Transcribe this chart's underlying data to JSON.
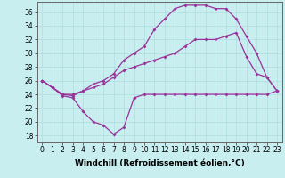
{
  "xlabel": "Windchill (Refroidissement éolien,°C)",
  "background_color": "#c8eef0",
  "grid_color": "#b0dde0",
  "line_color": "#993399",
  "x_ticks": [
    0,
    1,
    2,
    3,
    4,
    5,
    6,
    7,
    8,
    9,
    10,
    11,
    12,
    13,
    14,
    15,
    16,
    17,
    18,
    19,
    20,
    21,
    22,
    23
  ],
  "y_ticks": [
    18,
    20,
    22,
    24,
    26,
    28,
    30,
    32,
    34,
    36
  ],
  "xlim": [
    -0.5,
    23.5
  ],
  "ylim": [
    17.0,
    37.5
  ],
  "line1_x": [
    0,
    1,
    2,
    3,
    4,
    5,
    6,
    7,
    8,
    9,
    10,
    11,
    12,
    13,
    14,
    15,
    16,
    17,
    18,
    19,
    20,
    21,
    22,
    23
  ],
  "line1_y": [
    26.0,
    25.0,
    23.8,
    23.5,
    21.5,
    20.0,
    19.5,
    18.2,
    19.2,
    23.5,
    24.0,
    24.0,
    24.0,
    24.0,
    24.0,
    24.0,
    24.0,
    24.0,
    24.0,
    24.0,
    24.0,
    24.0,
    24.0,
    24.5
  ],
  "line2_x": [
    0,
    1,
    2,
    3,
    4,
    5,
    6,
    7,
    8,
    9,
    10,
    11,
    12,
    13,
    14,
    15,
    16,
    17,
    18,
    19,
    20,
    21,
    22,
    23
  ],
  "line2_y": [
    26.0,
    25.0,
    24.0,
    23.8,
    24.5,
    25.0,
    25.5,
    26.5,
    27.5,
    28.0,
    28.5,
    29.0,
    29.5,
    30.0,
    31.0,
    32.0,
    32.0,
    32.0,
    32.5,
    33.0,
    29.5,
    27.0,
    26.5,
    24.5
  ],
  "line3_x": [
    0,
    1,
    2,
    3,
    4,
    5,
    6,
    7,
    8,
    9,
    10,
    11,
    12,
    13,
    14,
    15,
    16,
    17,
    18,
    19,
    20,
    21,
    22,
    23
  ],
  "line3_y": [
    26.0,
    25.0,
    24.0,
    24.0,
    24.5,
    25.5,
    26.0,
    27.0,
    29.0,
    30.0,
    31.0,
    33.5,
    35.0,
    36.5,
    37.0,
    37.0,
    37.0,
    36.5,
    36.5,
    35.0,
    32.5,
    30.0,
    26.5,
    24.5
  ],
  "tick_fontsize": 5.5,
  "xlabel_fontsize": 6.5,
  "marker": "D",
  "markersize": 2.0,
  "linewidth": 0.9
}
